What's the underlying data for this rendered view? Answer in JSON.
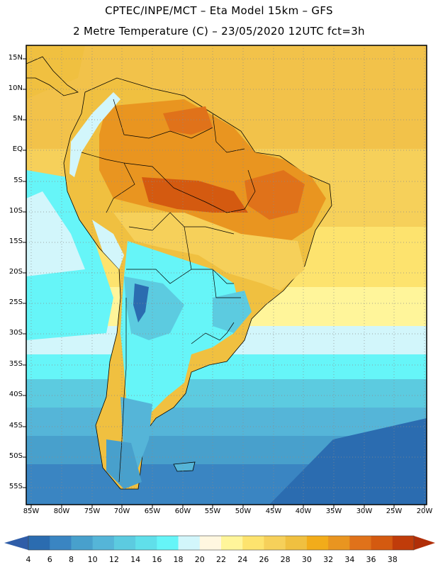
{
  "header": {
    "line1": "CPTEC/INPE/MCT –   Eta Model 15km – GFS",
    "line2": "2 Metre Temperature (C) – 23/05/2020 12UTC fct=3h"
  },
  "axes": {
    "lat_labels": [
      "15N",
      "10N",
      "5N",
      "EQ",
      "5S",
      "10S",
      "15S",
      "20S",
      "25S",
      "30S",
      "35S",
      "40S",
      "45S",
      "50S",
      "55S"
    ],
    "lon_labels": [
      "85W",
      "80W",
      "75W",
      "70W",
      "65W",
      "60W",
      "55W",
      "50W",
      "45W",
      "40W",
      "35W",
      "30W",
      "25W",
      "20W"
    ]
  },
  "colorbar": {
    "values": [
      "4",
      "6",
      "8",
      "10",
      "12",
      "14",
      "16",
      "18",
      "20",
      "22",
      "24",
      "26",
      "28",
      "30",
      "32",
      "34",
      "36",
      "38"
    ],
    "colors": [
      "#2b6cb0",
      "#3a85c2",
      "#48a0cc",
      "#55b5d8",
      "#5ccbe0",
      "#60dfea",
      "#66f5f8",
      "#d2f6fb",
      "#fff7e0",
      "#fff59a",
      "#fde36e",
      "#f6d05a",
      "#f0c040",
      "#f2ac1a",
      "#e99520",
      "#e0721a",
      "#d45a10",
      "#c03c0a"
    ],
    "under_color": "#2f5da8",
    "over_color": "#b02e08"
  },
  "colors": {
    "ocean_cold": "#2b6cb0",
    "ocean_mid": "#55b5d8",
    "ocean_warm": "#fff59a",
    "land_hot": "#e99520",
    "grid": "#999999"
  }
}
